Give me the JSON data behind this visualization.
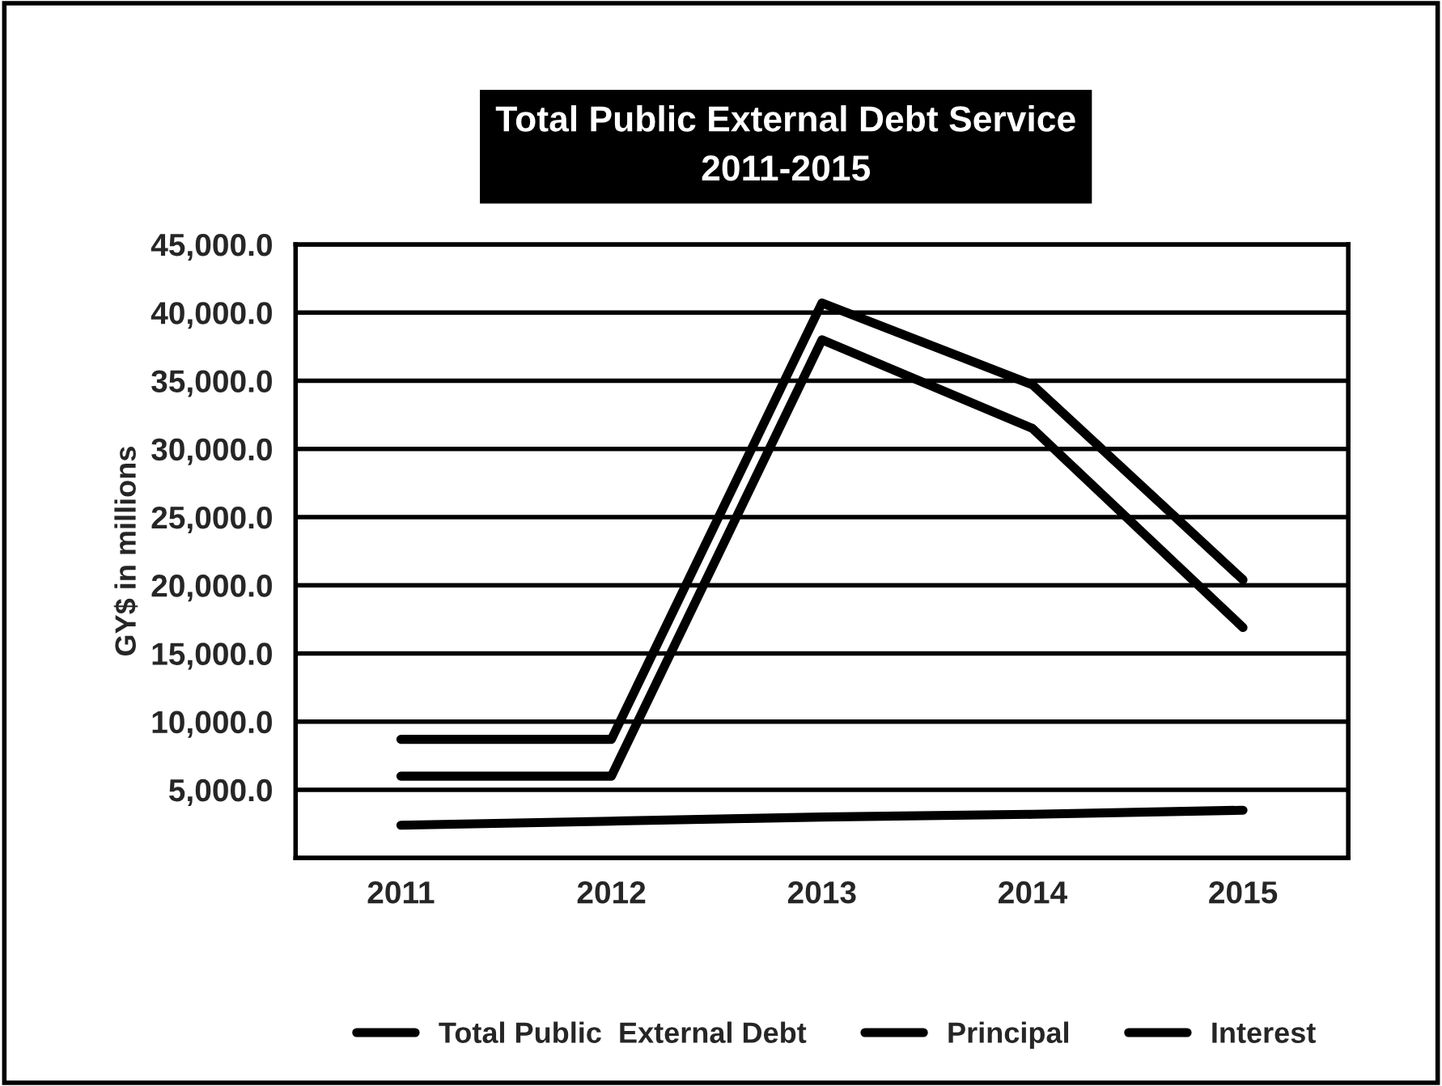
{
  "chart_data": {
    "type": "line",
    "title": "Total Public External Debt Service\n2011-2015",
    "ylabel": "GY$ in millions",
    "categories": [
      "2011",
      "2012",
      "2013",
      "2014",
      "2015"
    ],
    "series": [
      {
        "name": "Total Public  External Debt",
        "color": "#000000",
        "values": [
          8700,
          8700,
          40700,
          34700,
          20400
        ]
      },
      {
        "name": "Principal",
        "color": "#000000",
        "values": [
          6000,
          6000,
          38000,
          31500,
          16900
        ]
      },
      {
        "name": "Interest",
        "color": "#000000",
        "values": [
          2400,
          2700,
          3000,
          3200,
          3500
        ]
      }
    ],
    "ylim": [
      0,
      45000
    ],
    "yticks": [
      {
        "value": 0,
        "label": null
      },
      {
        "value": 5000,
        "label": "5,000.0"
      },
      {
        "value": 10000,
        "label": "10,000.0"
      },
      {
        "value": 15000,
        "label": "15,000.0"
      },
      {
        "value": 20000,
        "label": "20,000.0"
      },
      {
        "value": 25000,
        "label": "25,000.0"
      },
      {
        "value": 30000,
        "label": "30,000.0"
      },
      {
        "value": 35000,
        "label": "35,000.0"
      },
      {
        "value": 40000,
        "label": "40,000.0"
      },
      {
        "value": 45000,
        "label": "45,000.0"
      }
    ],
    "grid": "y",
    "legend": "bottom",
    "marker": "none",
    "line_style": "solid"
  }
}
